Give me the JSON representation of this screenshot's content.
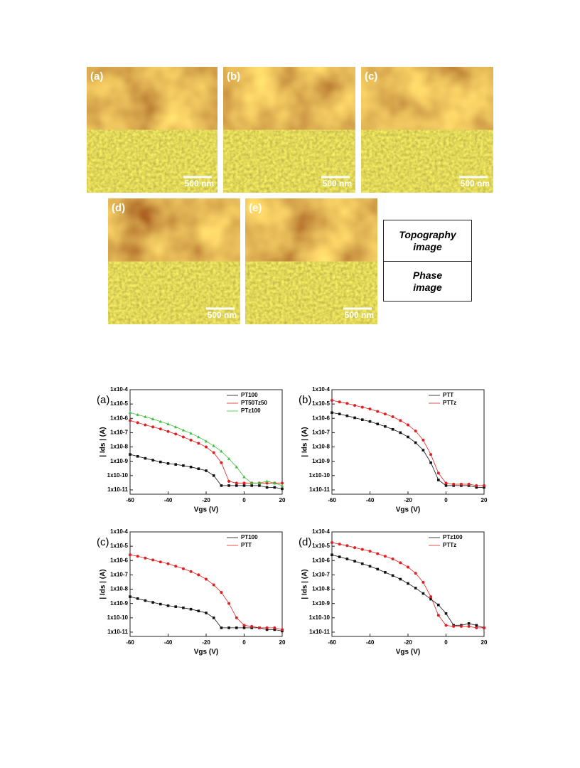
{
  "afm": {
    "panels": [
      {
        "label": "(a)",
        "scale_bar": "500 nm"
      },
      {
        "label": "(b)",
        "scale_bar": "500 nm"
      },
      {
        "label": "(c)",
        "scale_bar": "500 nm"
      },
      {
        "label": "(d)",
        "scale_bar": "500 nm"
      },
      {
        "label": "(e)",
        "scale_bar": "500 nm"
      }
    ],
    "legend": [
      "Topography image",
      "Phase image"
    ]
  },
  "chart_data": [
    {
      "type": "line",
      "panel": "(a)",
      "xlabel": "Vgs (V)",
      "ylabel": "| Ids | (A)",
      "log_y": true,
      "legend": "upper right",
      "x": [
        -60,
        -56,
        -52,
        -48,
        -44,
        -40,
        -36,
        -32,
        -28,
        -24,
        -20,
        -16,
        -12,
        -8,
        -4,
        0,
        4,
        8,
        12,
        16,
        20
      ],
      "xlim": [
        -60,
        20
      ],
      "xticks": [
        -60,
        -40,
        -20,
        0,
        20
      ],
      "ylim": [
        5e-12,
        0.0001
      ],
      "yticks": [
        {
          "value": 1e-11,
          "label": "1x10-11"
        },
        {
          "value": 1e-10,
          "label": "1x10-10"
        },
        {
          "value": 1e-09,
          "label": "1x10-9"
        },
        {
          "value": 1e-08,
          "label": "1x10-8"
        },
        {
          "value": 1e-07,
          "label": "1x10-7"
        },
        {
          "value": 1e-06,
          "label": "1x10-6"
        },
        {
          "value": 1e-05,
          "label": "1x10-5"
        },
        {
          "value": 0.0001,
          "label": "1x10-4"
        }
      ],
      "series": [
        {
          "name": "PT100",
          "color": "#111111",
          "marker": "square",
          "values": [
            3e-09,
            2.2e-09,
            1.6e-09,
            1.2e-09,
            9e-10,
            7e-10,
            6e-10,
            5e-10,
            4e-10,
            3e-10,
            2.2e-10,
            1e-10,
            2e-11,
            2e-11,
            2e-11,
            2e-11,
            2e-11,
            2e-11,
            1.5e-11,
            1.5e-11,
            1.2e-11
          ]
        },
        {
          "name": "PT50Tz50",
          "color": "#e02020",
          "marker": "circle",
          "values": [
            7e-07,
            5e-07,
            3.5e-07,
            2.5e-07,
            1.8e-07,
            1.2e-07,
            8e-08,
            5e-08,
            3e-08,
            1.8e-08,
            1e-08,
            4e-09,
            8e-10,
            4e-11,
            3e-11,
            3e-11,
            3e-11,
            3e-11,
            3e-11,
            3e-11,
            3e-11
          ]
        },
        {
          "name": "PTz100",
          "color": "#40c040",
          "marker": "triangle",
          "values": [
            2.5e-06,
            1.8e-06,
            1.3e-06,
            9e-07,
            6e-07,
            4e-07,
            2.5e-07,
            1.5e-07,
            9e-08,
            5e-08,
            2.5e-08,
            1.2e-08,
            5e-09,
            1.5e-09,
            4e-10,
            8e-11,
            3e-11,
            3e-11,
            4e-11,
            3e-11,
            2e-11
          ]
        }
      ]
    },
    {
      "type": "line",
      "panel": "(b)",
      "xlabel": "Vgs (V)",
      "ylabel": "| Ids | (A)",
      "log_y": true,
      "legend": "upper right",
      "x": [
        -60,
        -56,
        -52,
        -48,
        -44,
        -40,
        -36,
        -32,
        -28,
        -24,
        -20,
        -16,
        -12,
        -8,
        -4,
        0,
        4,
        8,
        12,
        16,
        20
      ],
      "xlim": [
        -60,
        20
      ],
      "xticks": [
        -60,
        -40,
        -20,
        0,
        20
      ],
      "ylim": [
        5e-12,
        0.0001
      ],
      "yticks": [
        {
          "value": 1e-11,
          "label": "1x10-11"
        },
        {
          "value": 1e-10,
          "label": "1x10-10"
        },
        {
          "value": 1e-09,
          "label": "1x10-9"
        },
        {
          "value": 1e-08,
          "label": "1x10-8"
        },
        {
          "value": 1e-07,
          "label": "1x10-7"
        },
        {
          "value": 1e-06,
          "label": "1x10-6"
        },
        {
          "value": 1e-05,
          "label": "1x10-5"
        },
        {
          "value": 0.0001,
          "label": "1x10-4"
        }
      ],
      "series": [
        {
          "name": "PTT",
          "color": "#111111",
          "marker": "square",
          "values": [
            2.5e-06,
            2e-06,
            1.5e-06,
            1.1e-06,
            8e-07,
            6e-07,
            4e-07,
            2.7e-07,
            1.7e-07,
            1e-07,
            5e-08,
            2e-08,
            6e-09,
            8e-10,
            5e-11,
            2e-11,
            2e-11,
            2e-11,
            2e-11,
            1.5e-11,
            1.5e-11
          ]
        },
        {
          "name": "PTTz",
          "color": "#e02020",
          "marker": "circle",
          "values": [
            1.8e-05,
            1.4e-05,
            1.1e-05,
            8e-06,
            6e-06,
            4.5e-06,
            3e-06,
            2e-06,
            1.3e-06,
            7e-07,
            3.5e-07,
            1.3e-07,
            3e-08,
            3e-09,
            1.5e-10,
            3e-11,
            2.5e-11,
            2.5e-11,
            2.5e-11,
            2e-11,
            2e-11
          ]
        }
      ]
    },
    {
      "type": "line",
      "panel": "(c)",
      "xlabel": "Vgs (V)",
      "ylabel": "| Ids | (A)",
      "log_y": true,
      "legend": "upper right",
      "x": [
        -60,
        -56,
        -52,
        -48,
        -44,
        -40,
        -36,
        -32,
        -28,
        -24,
        -20,
        -16,
        -12,
        -8,
        -4,
        0,
        4,
        8,
        12,
        16,
        20
      ],
      "xlim": [
        -60,
        20
      ],
      "xticks": [
        -60,
        -40,
        -20,
        0,
        20
      ],
      "ylim": [
        5e-12,
        0.0001
      ],
      "yticks": [
        {
          "value": 1e-11,
          "label": "1x10-11"
        },
        {
          "value": 1e-10,
          "label": "1x10-10"
        },
        {
          "value": 1e-09,
          "label": "1x10-9"
        },
        {
          "value": 1e-08,
          "label": "1x10-8"
        },
        {
          "value": 1e-07,
          "label": "1x10-7"
        },
        {
          "value": 1e-06,
          "label": "1x10-6"
        },
        {
          "value": 1e-05,
          "label": "1x10-5"
        },
        {
          "value": 0.0001,
          "label": "1x10-4"
        }
      ],
      "series": [
        {
          "name": "PT100",
          "color": "#111111",
          "marker": "square",
          "values": [
            3e-09,
            2.2e-09,
            1.6e-09,
            1.2e-09,
            9e-10,
            7e-10,
            6e-10,
            5e-10,
            4e-10,
            3e-10,
            2.2e-10,
            1e-10,
            2e-11,
            2e-11,
            2e-11,
            2e-11,
            2e-11,
            2e-11,
            1.5e-11,
            1.5e-11,
            1.2e-11
          ]
        },
        {
          "name": "PTT",
          "color": "#e02020",
          "marker": "circle",
          "values": [
            2.5e-06,
            2e-06,
            1.5e-06,
            1.1e-06,
            8e-07,
            6e-07,
            4e-07,
            2.7e-07,
            1.7e-07,
            1e-07,
            5e-08,
            2e-08,
            6e-09,
            1e-09,
            1e-10,
            3e-11,
            2.5e-11,
            2e-11,
            2e-11,
            2e-11,
            1.5e-11
          ]
        }
      ]
    },
    {
      "type": "line",
      "panel": "(d)",
      "xlabel": "Vgs (V)",
      "ylabel": "| Ids | (A)",
      "log_y": true,
      "legend": "upper right",
      "x": [
        -60,
        -56,
        -52,
        -48,
        -44,
        -40,
        -36,
        -32,
        -28,
        -24,
        -20,
        -16,
        -12,
        -8,
        -4,
        0,
        4,
        8,
        12,
        16,
        20
      ],
      "xlim": [
        -60,
        20
      ],
      "xticks": [
        -60,
        -40,
        -20,
        0,
        20
      ],
      "ylim": [
        5e-12,
        0.0001
      ],
      "yticks": [
        {
          "value": 1e-11,
          "label": "1x10-11"
        },
        {
          "value": 1e-10,
          "label": "1x10-10"
        },
        {
          "value": 1e-09,
          "label": "1x10-9"
        },
        {
          "value": 1e-08,
          "label": "1x10-8"
        },
        {
          "value": 1e-07,
          "label": "1x10-7"
        },
        {
          "value": 1e-06,
          "label": "1x10-6"
        },
        {
          "value": 1e-05,
          "label": "1x10-5"
        },
        {
          "value": 0.0001,
          "label": "1x10-4"
        }
      ],
      "series": [
        {
          "name": "PTz100",
          "color": "#111111",
          "marker": "square",
          "values": [
            2.5e-06,
            1.8e-06,
            1.3e-06,
            9e-07,
            6e-07,
            4e-07,
            2.5e-07,
            1.5e-07,
            9e-08,
            5e-08,
            2.5e-08,
            1.2e-08,
            5e-09,
            2e-09,
            8e-10,
            2e-10,
            3e-11,
            3e-11,
            4e-11,
            3e-11,
            2e-11
          ]
        },
        {
          "name": "PTTz",
          "color": "#e02020",
          "marker": "circle",
          "values": [
            1.8e-05,
            1.4e-05,
            1.1e-05,
            8e-06,
            6e-06,
            4.5e-06,
            3e-06,
            2e-06,
            1.3e-06,
            7e-07,
            3.5e-07,
            1.3e-07,
            3e-08,
            3e-09,
            1.5e-10,
            3e-11,
            2.5e-11,
            2.5e-11,
            2.5e-11,
            2e-11,
            2e-11
          ]
        }
      ]
    }
  ]
}
